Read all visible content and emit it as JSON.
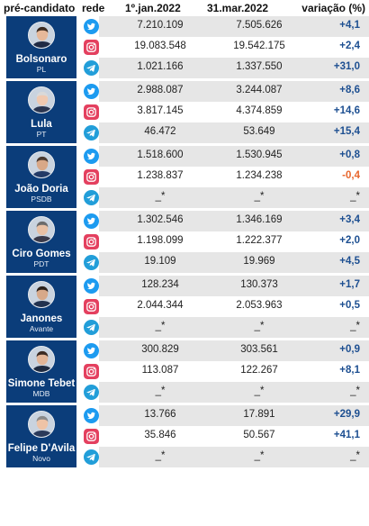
{
  "header": {
    "candidate": "pré-candidato",
    "network": "rede",
    "jan": "1º.jan.2022",
    "mar": "31.mar.2022",
    "change": "variação (%)"
  },
  "colors": {
    "candidate_bg": "#0b3d7a",
    "positive": "#1d4f91",
    "negative": "#e8662c",
    "twitter": "#1d9bf0",
    "instagram": "#e4405f",
    "telegram": "#229ed9",
    "row_shade": "#e6e6e6"
  },
  "chart_data": {
    "type": "table",
    "columns": [
      "pré-candidato",
      "rede",
      "1º.jan.2022",
      "31.mar.2022",
      "variação (%)"
    ],
    "candidates": [
      {
        "name": "Bolsonaro",
        "party": "PL",
        "rows": [
          {
            "network": "twitter-icon",
            "jan": "7.210.109",
            "mar": "7.505.626",
            "change": "+4,1"
          },
          {
            "network": "instagram-icon",
            "jan": "19.083.548",
            "mar": "19.542.175",
            "change": "+2,4"
          },
          {
            "network": "telegram-icon",
            "jan": "1.021.166",
            "mar": "1.337.550",
            "change": "+31,0"
          }
        ]
      },
      {
        "name": "Lula",
        "party": "PT",
        "rows": [
          {
            "network": "twitter-icon",
            "jan": "2.988.087",
            "mar": "3.244.087",
            "change": "+8,6"
          },
          {
            "network": "instagram-icon",
            "jan": "3.817.145",
            "mar": "4.374.859",
            "change": "+14,6"
          },
          {
            "network": "telegram-icon",
            "jan": "46.472",
            "mar": "53.649",
            "change": "+15,4"
          }
        ]
      },
      {
        "name": "João Doria",
        "party": "PSDB",
        "rows": [
          {
            "network": "twitter-icon",
            "jan": "1.518.600",
            "mar": "1.530.945",
            "change": "+0,8"
          },
          {
            "network": "instagram-icon",
            "jan": "1.238.837",
            "mar": "1.234.238",
            "change": "-0,4"
          },
          {
            "network": "telegram-icon",
            "jan": "_*",
            "mar": "_*",
            "change": "_*"
          }
        ]
      },
      {
        "name": "Ciro Gomes",
        "party": "PDT",
        "rows": [
          {
            "network": "twitter-icon",
            "jan": "1.302.546",
            "mar": "1.346.169",
            "change": "+3,4"
          },
          {
            "network": "instagram-icon",
            "jan": "1.198.099",
            "mar": "1.222.377",
            "change": "+2,0"
          },
          {
            "network": "telegram-icon",
            "jan": "19.109",
            "mar": "19.969",
            "change": "+4,5"
          }
        ]
      },
      {
        "name": "Janones",
        "party": "Avante",
        "rows": [
          {
            "network": "twitter-icon",
            "jan": "128.234",
            "mar": "130.373",
            "change": "+1,7"
          },
          {
            "network": "instagram-icon",
            "jan": "2.044.344",
            "mar": "2.053.963",
            "change": "+0,5"
          },
          {
            "network": "telegram-icon",
            "jan": "_*",
            "mar": "_*",
            "change": "_*"
          }
        ]
      },
      {
        "name": "Simone Tebet",
        "party": "MDB",
        "rows": [
          {
            "network": "twitter-icon",
            "jan": "300.829",
            "mar": "303.561",
            "change": "+0,9"
          },
          {
            "network": "instagram-icon",
            "jan": "113.087",
            "mar": "122.267",
            "change": "+8,1"
          },
          {
            "network": "telegram-icon",
            "jan": "_*",
            "mar": "_*",
            "change": "_*"
          }
        ]
      },
      {
        "name": "Felipe D'Avila",
        "party": "Novo",
        "rows": [
          {
            "network": "twitter-icon",
            "jan": "13.766",
            "mar": "17.891",
            "change": "+29,9"
          },
          {
            "network": "instagram-icon",
            "jan": "35.846",
            "mar": "50.567",
            "change": "+41,1"
          },
          {
            "network": "telegram-icon",
            "jan": "_*",
            "mar": "_*",
            "change": "_*"
          }
        ]
      }
    ]
  }
}
